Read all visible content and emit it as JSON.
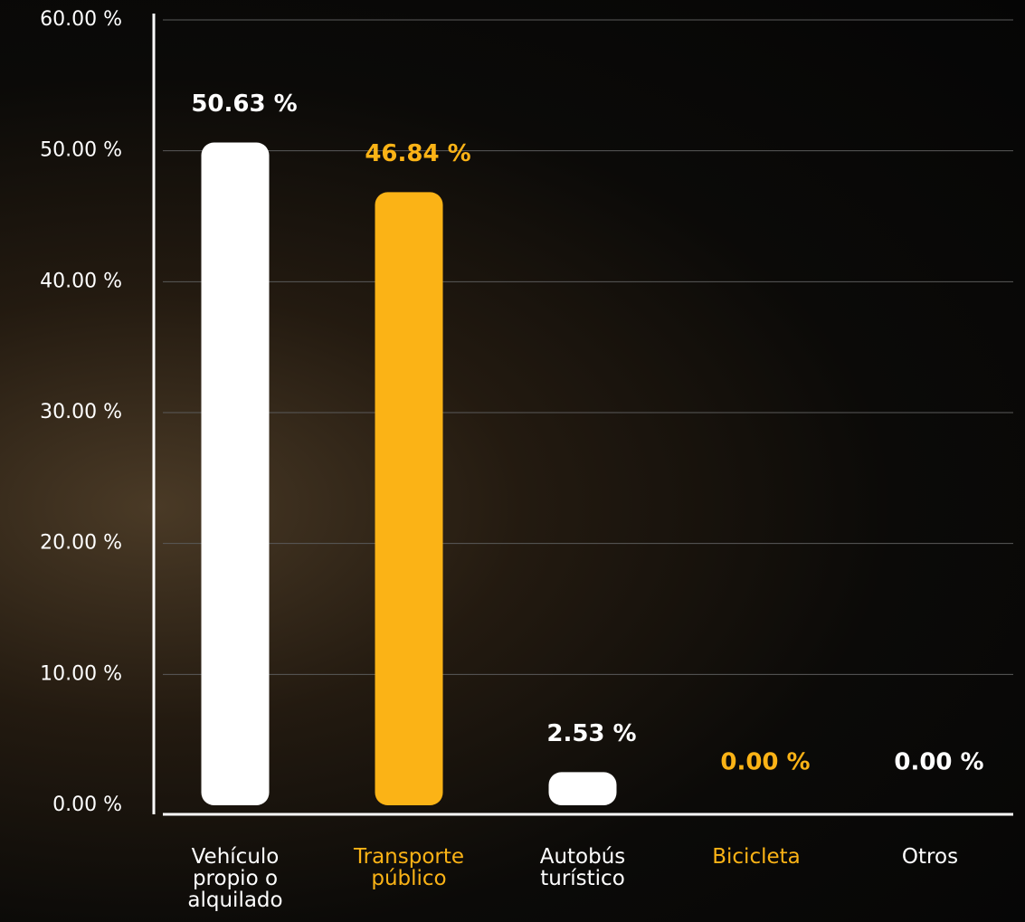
{
  "chart_data": {
    "type": "bar",
    "categories": [
      "Vehículo propio o alquilado",
      "Transporte público",
      "Autobús turístico",
      "Bicicleta",
      "Otros"
    ],
    "values": [
      50.63,
      46.84,
      2.53,
      0,
      0
    ],
    "value_labels": [
      "50.63 %",
      "46.84 %",
      "2.53 %",
      "0.00 %",
      "0.00 %"
    ],
    "colors": [
      "#ffffff",
      "#fbb316",
      "#ffffff",
      "#fbb316",
      "#ffffff"
    ],
    "ylim": [
      0,
      60
    ],
    "yticks": [
      {
        "value": 0,
        "label": "0.00 %"
      },
      {
        "value": 10,
        "label": "10.00 %"
      },
      {
        "value": 20,
        "label": "20.00 %"
      },
      {
        "value": 30,
        "label": "30.00 %"
      },
      {
        "value": 40,
        "label": "40.00 %"
      },
      {
        "value": 50,
        "label": "50.00 %"
      },
      {
        "value": 60,
        "label": "60.00 %"
      }
    ],
    "grid": true
  }
}
